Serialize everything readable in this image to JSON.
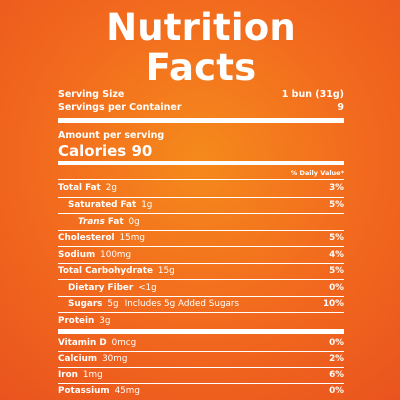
{
  "title": "Nutrition Facts",
  "serving": {
    "size_label": "Serving Size",
    "size_value": "1 bun (31g)",
    "per_container_label": "Servings per Container",
    "per_container_value": "9"
  },
  "amount_per_serving": "Amount per serving",
  "calories": {
    "label": "Calories",
    "value": "90"
  },
  "daily_value_header": "% Daily Value*",
  "nutrients": [
    {
      "label": "Total Fat",
      "amount": "2g",
      "dv": "3%"
    },
    {
      "label": "Saturated Fat",
      "amount": "1g",
      "dv": "5%"
    },
    {
      "label": "Trans Fat",
      "label_prefix": "Trans",
      "label_suffix": "Fat",
      "amount": "0g",
      "dv": ""
    },
    {
      "label": "Cholesterol",
      "amount": "15mg",
      "dv": "5%"
    },
    {
      "label": "Sodium",
      "amount": "100mg",
      "dv": "4%"
    },
    {
      "label": "Total Carbohydrate",
      "amount": "15g",
      "dv": "5%"
    },
    {
      "label": "Dietary Fiber",
      "amount": "<1g",
      "dv": "0%"
    },
    {
      "label": "Sugars",
      "amount": "5g",
      "added": "Includes 5g Added Sugars",
      "dv": "10%"
    },
    {
      "label": "Protein",
      "amount": "3g",
      "dv": ""
    }
  ],
  "vitamins": [
    {
      "label": "Vitamin D",
      "amount": "0mcg",
      "dv": "0%"
    },
    {
      "label": "Calcium",
      "amount": "30mg",
      "dv": "2%"
    },
    {
      "label": "Iron",
      "amount": "1mg",
      "dv": "6%"
    },
    {
      "label": "Potassium",
      "amount": "45mg",
      "dv": "0%"
    }
  ],
  "colors": {
    "background": "#f2681e",
    "text": "#ffffff"
  }
}
